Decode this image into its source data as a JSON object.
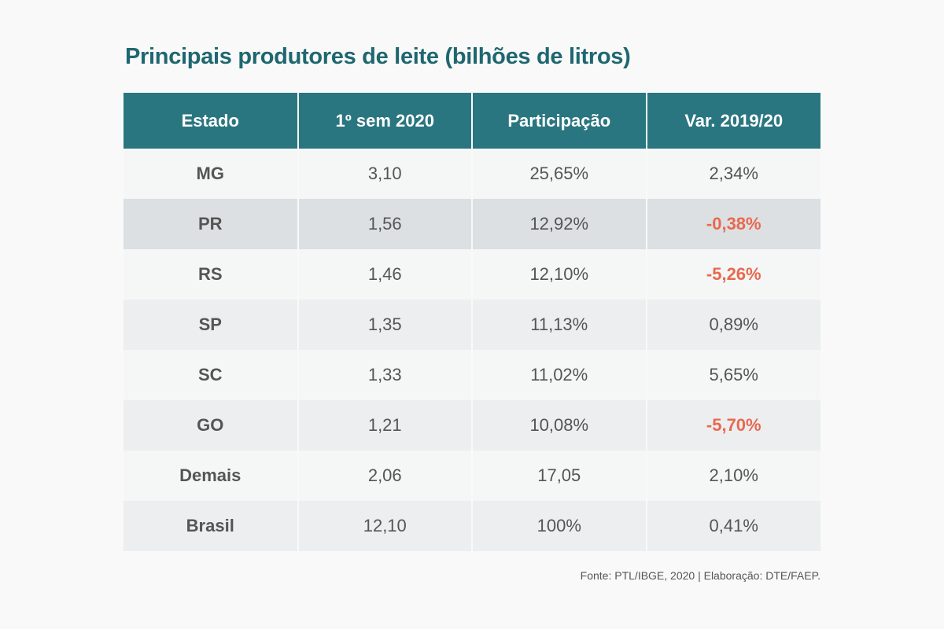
{
  "title": "Principais produtores de leite (bilhões de litros)",
  "colors": {
    "header_bg": "#2a7680",
    "title": "#1f6770",
    "negative": "#e8694f",
    "text": "#555555"
  },
  "chart_data": {
    "type": "table",
    "title": "Principais produtores de leite (bilhões de litros)",
    "columns": [
      "Estado",
      "1º sem 2020",
      "Participação",
      "Var. 2019/20"
    ],
    "rows": [
      [
        "MG",
        "3,10",
        "25,65%",
        "2,34%"
      ],
      [
        "PR",
        "1,56",
        "12,92%",
        "-0,38%"
      ],
      [
        "RS",
        "1,46",
        "12,10%",
        "-5,26%"
      ],
      [
        "SP",
        "1,35",
        "11,13%",
        "0,89%"
      ],
      [
        "SC",
        "1,33",
        "11,02%",
        "5,65%"
      ],
      [
        "GO",
        "1,21",
        "10,08%",
        "-5,70%"
      ],
      [
        "Demais",
        "2,06",
        "17,05",
        "2,10%"
      ],
      [
        "Brasil",
        "12,10",
        "100%",
        "0,41%"
      ]
    ]
  },
  "source": "Fonte: PTL/IBGE, 2020 | Elaboração: DTE/FAEP."
}
